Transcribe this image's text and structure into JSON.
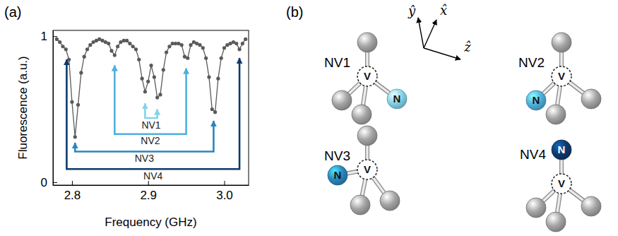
{
  "panel_labels": [
    "(a)",
    "(b)"
  ],
  "chart_data": {
    "type": "line",
    "xlabel": "Frequency (GHz)",
    "ylabel": "Fluorescence (a.u.)",
    "x": [
      2.78,
      2.784,
      2.788,
      2.792,
      2.796,
      2.8,
      2.804,
      2.808,
      2.812,
      2.816,
      2.82,
      2.824,
      2.828,
      2.832,
      2.836,
      2.84,
      2.844,
      2.848,
      2.852,
      2.856,
      2.86,
      2.864,
      2.868,
      2.872,
      2.876,
      2.88,
      2.884,
      2.888,
      2.892,
      2.896,
      2.9,
      2.904,
      2.908,
      2.912,
      2.916,
      2.92,
      2.924,
      2.928,
      2.932,
      2.936,
      2.94,
      2.944,
      2.948,
      2.952,
      2.956,
      2.96,
      2.964,
      2.968,
      2.972,
      2.976,
      2.98,
      2.984,
      2.988,
      2.992,
      2.996,
      3.0,
      3.004,
      3.008,
      3.012,
      3.016,
      3.02,
      3.024,
      3.028
    ],
    "values": [
      0.98,
      0.96,
      0.93,
      0.91,
      0.84,
      0.55,
      0.31,
      0.53,
      0.75,
      0.86,
      0.91,
      0.94,
      0.96,
      0.97,
      0.98,
      0.97,
      0.96,
      0.95,
      0.9,
      0.87,
      0.93,
      0.96,
      0.97,
      0.97,
      0.95,
      0.93,
      0.91,
      0.84,
      0.71,
      0.62,
      0.69,
      0.8,
      0.72,
      0.58,
      0.6,
      0.77,
      0.89,
      0.93,
      0.95,
      0.95,
      0.95,
      0.94,
      0.86,
      0.85,
      0.94,
      0.96,
      0.95,
      0.94,
      0.92,
      0.85,
      0.72,
      0.5,
      0.48,
      0.71,
      0.85,
      0.92,
      0.94,
      0.95,
      0.96,
      0.95,
      0.91,
      0.95,
      0.98
    ],
    "color": "#5a5a5a",
    "marker": "circle",
    "line_style": "solid",
    "xlim": [
      2.775,
      3.032
    ],
    "ylim": [
      -0.02,
      1.04
    ],
    "xticks": [
      2.8,
      2.9,
      {
        "value": 3.0,
        "label": "3.0"
      }
    ],
    "yticks": [
      0,
      1
    ],
    "annotations": [
      {
        "text": "NV1",
        "color": "#86d3e8",
        "x": [
          2.896,
          2.912
        ],
        "y": [
          0.54,
          0.5
        ],
        "y_base": 0.44
      },
      {
        "text": "NV2",
        "color": "#4fb0de",
        "x": [
          2.856,
          2.95
        ],
        "y": [
          0.8,
          0.78
        ],
        "y_base": 0.33
      },
      {
        "text": "NV3",
        "color": "#2a86bd",
        "x": [
          2.804,
          2.986
        ],
        "y": [
          0.27,
          0.42
        ],
        "y_base": 0.21
      },
      {
        "text": "NV4",
        "color": "#0e3a6b",
        "x": [
          2.793,
          3.02
        ],
        "y": [
          0.84,
          0.85
        ],
        "y_base": 0.09
      }
    ]
  },
  "diagram": {
    "axes": [
      "ŷ",
      "x̂",
      "ẑ"
    ],
    "centers": [
      {
        "name": "NV1",
        "vacancy": "V",
        "nitrogen": "N",
        "color": "#86d3e8"
      },
      {
        "name": "NV2",
        "vacancy": "V",
        "nitrogen": "N",
        "color": "#4fb0de"
      },
      {
        "name": "NV3",
        "vacancy": "V",
        "nitrogen": "N",
        "color": "#2a86bd"
      },
      {
        "name": "NV4",
        "vacancy": "V",
        "nitrogen": "N",
        "color": "#0e3a6b"
      }
    ]
  }
}
